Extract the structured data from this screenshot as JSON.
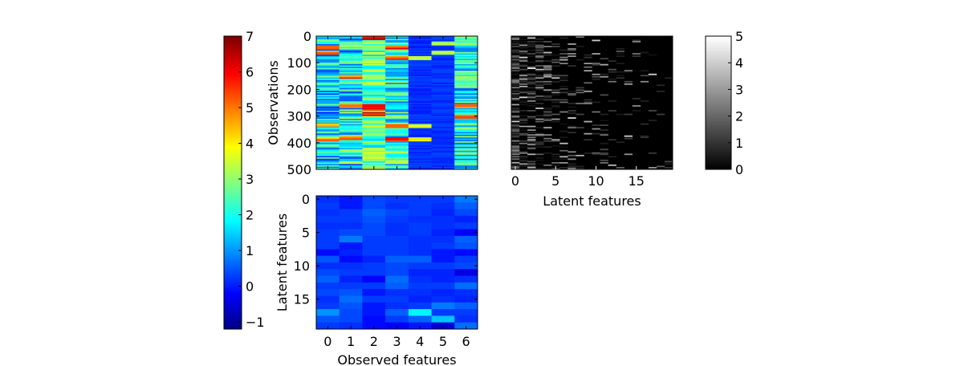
{
  "chart_data": [
    {
      "type": "heatmap",
      "id": "observations",
      "title": "",
      "xlabel": "",
      "ylabel": "Observations",
      "x_categories": [
        0,
        1,
        2,
        3,
        4,
        5,
        6
      ],
      "show_x_ticks": false,
      "y_ticks": [
        0,
        100,
        200,
        300,
        400,
        500
      ],
      "ylim": [
        0,
        500
      ],
      "n_rows": 500,
      "colormap": "jet",
      "value_range": [
        -1.2,
        7
      ],
      "column_profiles": [
        {
          "column": 0,
          "base": 1.5,
          "spread": 1.5,
          "rows_with_strong_high_values": [
            40,
            60,
            330,
            385
          ]
        },
        {
          "column": 1,
          "base": 1.8,
          "spread": 1.6,
          "rows_with_strong_high_values": [
            150,
            260,
            380
          ]
        },
        {
          "column": 2,
          "base": 2.6,
          "spread": 1.2,
          "rows_with_strong_high_values": [
            5,
            260,
            270,
            290
          ]
        },
        {
          "column": 3,
          "base": 2.1,
          "spread": 1.4,
          "rows_with_strong_high_values": [
            40,
            80,
            335,
            385
          ]
        },
        {
          "column": 4,
          "base": 0.2,
          "spread": 0.2,
          "rows_with_strong_high_values": [
            80,
            335,
            385
          ]
        },
        {
          "column": 5,
          "base": 0.2,
          "spread": 0.2,
          "rows_with_strong_high_values": [
            25,
            60
          ]
        },
        {
          "column": 6,
          "base": 2.0,
          "spread": 1.4,
          "rows_with_strong_high_values": [
            260,
            300
          ]
        }
      ]
    },
    {
      "type": "heatmap",
      "id": "loadings",
      "title": "",
      "xlabel": "Observed features",
      "ylabel": "Latent features",
      "x_categories": [
        0,
        1,
        2,
        3,
        4,
        5,
        6
      ],
      "y_ticks": [
        0,
        5,
        10,
        15
      ],
      "n_rows": 20,
      "colormap": "jet",
      "value_range": [
        -1.2,
        7
      ],
      "values": [
        [
          0.2,
          0.0,
          0.4,
          0.3,
          0.3,
          0.3,
          0.8
        ],
        [
          0.3,
          0.0,
          0.4,
          0.2,
          0.3,
          0.2,
          0.6
        ],
        [
          0.2,
          0.3,
          0.6,
          0.4,
          0.3,
          0.1,
          0.4
        ],
        [
          0.3,
          0.3,
          0.5,
          0.3,
          0.2,
          0.2,
          0.1
        ],
        [
          0.2,
          0.2,
          0.4,
          0.2,
          0.3,
          0.2,
          0.3
        ],
        [
          0.3,
          0.4,
          0.4,
          0.2,
          0.3,
          0.1,
          -0.2
        ],
        [
          0.3,
          0.8,
          0.3,
          0.3,
          0.2,
          0.2,
          0.6
        ],
        [
          0.3,
          0.0,
          0.3,
          0.3,
          0.2,
          0.3,
          0.5
        ],
        [
          -0.1,
          0.1,
          0.3,
          0.3,
          0.2,
          0.0,
          -0.1
        ],
        [
          0.5,
          -0.1,
          0.1,
          0.6,
          0.6,
          0.0,
          0.3
        ],
        [
          0.2,
          0.2,
          0.3,
          0.4,
          0.3,
          0.3,
          0.4
        ],
        [
          0.4,
          0.3,
          0.3,
          0.4,
          0.1,
          0.1,
          -0.4
        ],
        [
          0.6,
          0.1,
          -0.2,
          0.7,
          0.2,
          0.1,
          0.2
        ],
        [
          0.3,
          0.3,
          0.3,
          0.6,
          0.3,
          0.3,
          0.7
        ],
        [
          0.4,
          0.5,
          0.0,
          0.2,
          0.2,
          0.1,
          0.2
        ],
        [
          0.2,
          0.7,
          0.3,
          0.3,
          0.1,
          0.2,
          0.1
        ],
        [
          0.3,
          0.5,
          0.0,
          0.2,
          0.3,
          0.8,
          0.6
        ],
        [
          1.0,
          0.4,
          0.0,
          0.6,
          1.8,
          0.3,
          0.3
        ],
        [
          0.5,
          0.4,
          -0.1,
          0.3,
          0.6,
          1.4,
          0.2
        ],
        [
          0.3,
          0.2,
          -0.1,
          -0.2,
          0.0,
          -0.5,
          0.7
        ]
      ]
    },
    {
      "type": "heatmap",
      "id": "latent",
      "title": "",
      "xlabel": "Latent features",
      "ylabel": "",
      "x_ticks": [
        0,
        5,
        10,
        15
      ],
      "n_cols": 20,
      "n_rows": 500,
      "show_y_ticks": false,
      "colormap": "gray",
      "value_range": [
        0,
        5
      ],
      "density_note_per_column": [
        0.7,
        0.45,
        0.45,
        0.35,
        0.3,
        0.25,
        0.2,
        0.15,
        0.15,
        0.12,
        0.1,
        0.15,
        0.1,
        0.12,
        0.08,
        0.08,
        0.06,
        0.06,
        0.04,
        0.04
      ]
    }
  ],
  "colorbars": [
    {
      "id": "jet-colorbar",
      "colormap": "jet",
      "range": [
        -1.2,
        7
      ],
      "ticks": [
        -1,
        0,
        1,
        2,
        3,
        4,
        5,
        6,
        7
      ]
    },
    {
      "id": "gray-colorbar",
      "colormap": "gray",
      "range": [
        0,
        5
      ],
      "ticks": [
        0,
        1,
        2,
        3,
        4,
        5
      ]
    }
  ]
}
